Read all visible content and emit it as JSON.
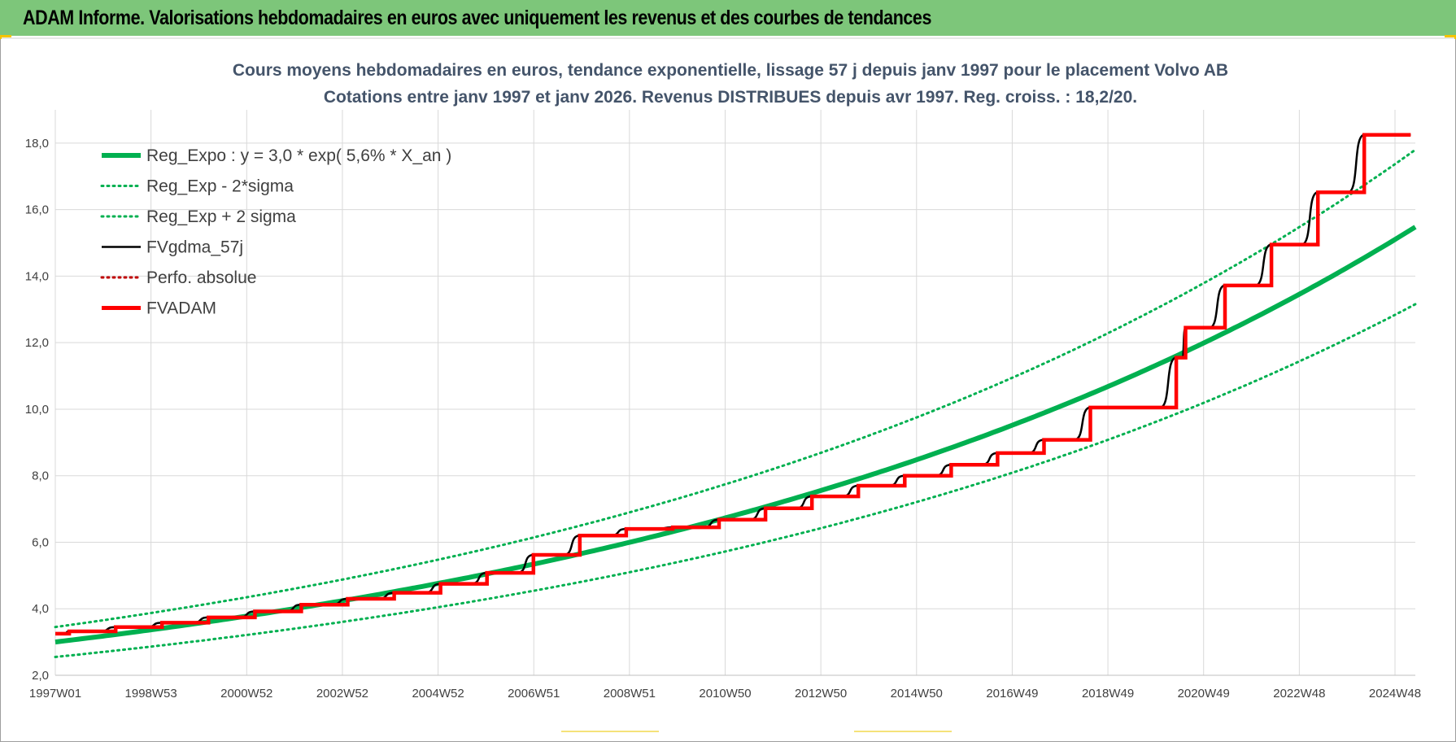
{
  "header": {
    "title": "ADAM Informe. Valorisations hebdomadaires en euros avec uniquement les revenus et des courbes de tendances"
  },
  "colors": {
    "header_bg": "#7dc67a",
    "reg_green": "#00b050",
    "fv_black": "#000000",
    "fvadam_red": "#ff0000",
    "perfo_red": "#c00000"
  },
  "chart_data": {
    "type": "line",
    "title": [
      "Cours moyens hebdomadaires en euros, tendance exponentielle, lissage 57 j depuis janv 1997  pour le placement Volvo AB",
      "Cotations entre janv 1997 et janv 2026. Revenus DISTRIBUES depuis avr 1997.  Reg. croiss. : 18,2/20."
    ],
    "xlabel": "",
    "ylabel": "",
    "x_ticks": [
      "1997W01",
      "1998W53",
      "2000W52",
      "2002W52",
      "2004W52",
      "2006W51",
      "2008W51",
      "2010W50",
      "2012W50",
      "2014W50",
      "2016W49",
      "2018W49",
      "2020W49",
      "2022W48",
      "2024W48"
    ],
    "xlim": [
      1997.0,
      2026.3
    ],
    "y_ticks": [
      "2,0",
      "4,0",
      "6,0",
      "8,0",
      "10,0",
      "12,0",
      "14,0",
      "16,0",
      "18,0"
    ],
    "ylim": [
      2,
      19
    ],
    "grid": true,
    "legend_position": "top-left",
    "legend": [
      {
        "label": "Reg_Expo : y = 3,0 * exp( 5,6% *  X_an )",
        "color": "#00b050",
        "style": "solid-thick"
      },
      {
        "label": "Reg_Exp - 2*sigma",
        "color": "#00b050",
        "style": "dotted"
      },
      {
        "label": "Reg_Exp + 2 sigma",
        "color": "#00b050",
        "style": "dotted"
      },
      {
        "label": "FVgdma_57j",
        "color": "#000000",
        "style": "solid"
      },
      {
        "label": "Perfo. absolue",
        "color": "#c00000",
        "style": "dotted"
      },
      {
        "label": "FVADAM",
        "color": "#ff0000",
        "style": "solid-thick"
      }
    ],
    "regression": {
      "a": 3.0,
      "rate": 0.056,
      "x0": 1997.0,
      "x_end": 2026.3,
      "sigma_band_factor": 0.15
    },
    "fvadam_steps": [
      {
        "x": 1997.0,
        "y": 3.25
      },
      {
        "x": 1997.3,
        "y": 3.32
      },
      {
        "x": 1998.3,
        "y": 3.45
      },
      {
        "x": 1999.3,
        "y": 3.58
      },
      {
        "x": 2000.3,
        "y": 3.74
      },
      {
        "x": 2001.3,
        "y": 3.92
      },
      {
        "x": 2002.3,
        "y": 4.12
      },
      {
        "x": 2003.3,
        "y": 4.3
      },
      {
        "x": 2004.3,
        "y": 4.48
      },
      {
        "x": 2005.3,
        "y": 4.75
      },
      {
        "x": 2006.3,
        "y": 5.08
      },
      {
        "x": 2007.3,
        "y": 5.62
      },
      {
        "x": 2008.3,
        "y": 6.2
      },
      {
        "x": 2009.3,
        "y": 6.4
      },
      {
        "x": 2010.3,
        "y": 6.45
      },
      {
        "x": 2011.3,
        "y": 6.68
      },
      {
        "x": 2012.3,
        "y": 7.02
      },
      {
        "x": 2013.3,
        "y": 7.38
      },
      {
        "x": 2014.3,
        "y": 7.7
      },
      {
        "x": 2015.3,
        "y": 8.0
      },
      {
        "x": 2016.3,
        "y": 8.33
      },
      {
        "x": 2017.3,
        "y": 8.68
      },
      {
        "x": 2018.3,
        "y": 9.08
      },
      {
        "x": 2019.3,
        "y": 10.05
      },
      {
        "x": 2021.15,
        "y": 11.55
      },
      {
        "x": 2021.35,
        "y": 12.45
      },
      {
        "x": 2022.2,
        "y": 13.72
      },
      {
        "x": 2023.2,
        "y": 14.95
      },
      {
        "x": 2024.2,
        "y": 16.52
      },
      {
        "x": 2025.2,
        "y": 18.25
      },
      {
        "x": 2026.2,
        "y": 18.25
      }
    ]
  }
}
